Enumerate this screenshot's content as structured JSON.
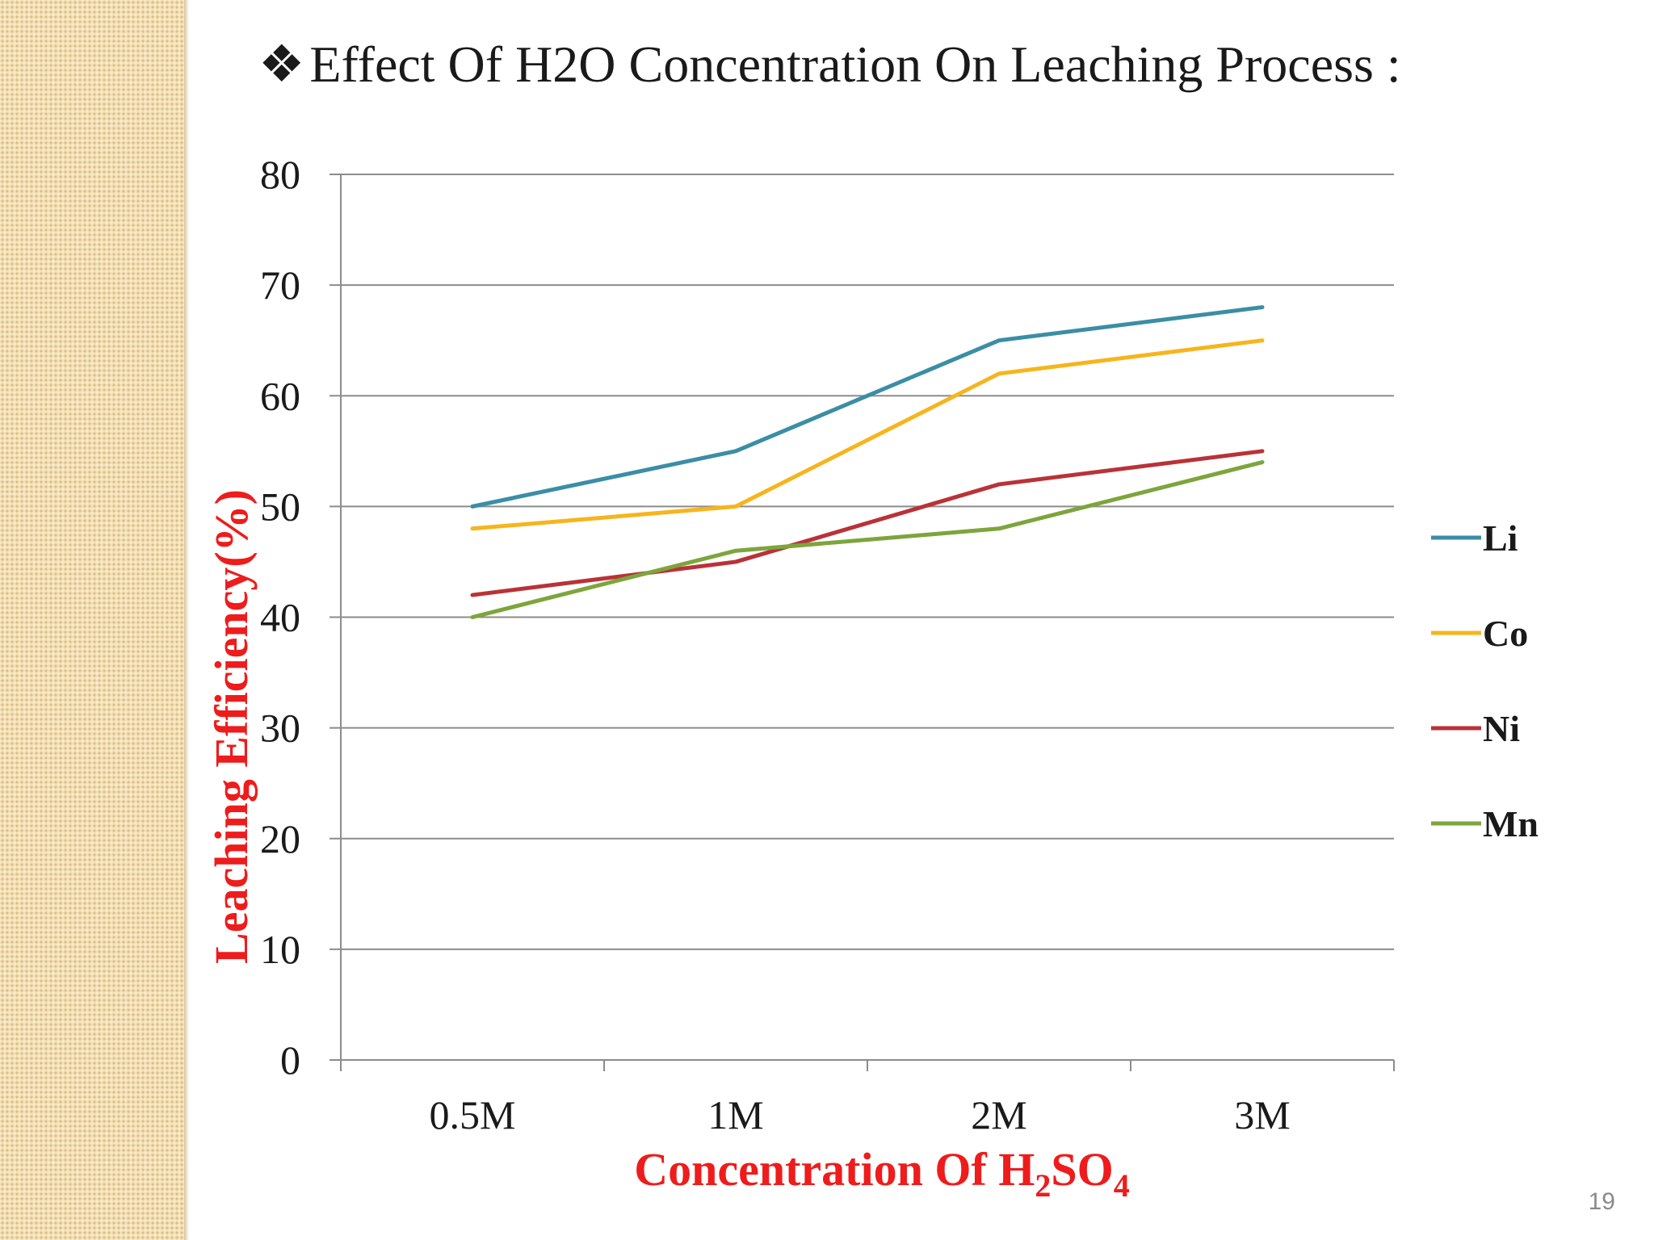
{
  "slide": {
    "title_bullet": "❖",
    "title": "Effect Of H2O Concentration On Leaching Process :",
    "page_number": "19"
  },
  "colors": {
    "axis_title": "#ee1c1c",
    "grid": "#8c8c8c"
  },
  "chart_data": {
    "type": "line",
    "title": "",
    "categories": [
      "0.5M",
      "1M",
      "2M",
      "3M"
    ],
    "xlabel": "Concentration Of H2SO4",
    "xlabel_parts": {
      "main": "Concentration Of H",
      "sub1": "2",
      "mid": "SO",
      "sub2": "4"
    },
    "ylabel": "Leaching Efficiency(%)",
    "ylim": [
      0,
      80
    ],
    "yticks": [
      0,
      10,
      20,
      30,
      40,
      50,
      60,
      70,
      80
    ],
    "grid": true,
    "legend_position": "right",
    "series": [
      {
        "name": "Li",
        "color": "#3a8ea5",
        "values": [
          50,
          55,
          65,
          68
        ]
      },
      {
        "name": "Co",
        "color": "#f6b51d",
        "values": [
          48,
          50,
          62,
          65
        ]
      },
      {
        "name": "Ni",
        "color": "#b93238",
        "values": [
          42,
          45,
          52,
          55
        ]
      },
      {
        "name": "Mn",
        "color": "#7da53c",
        "values": [
          40,
          46,
          48,
          54
        ]
      }
    ]
  }
}
